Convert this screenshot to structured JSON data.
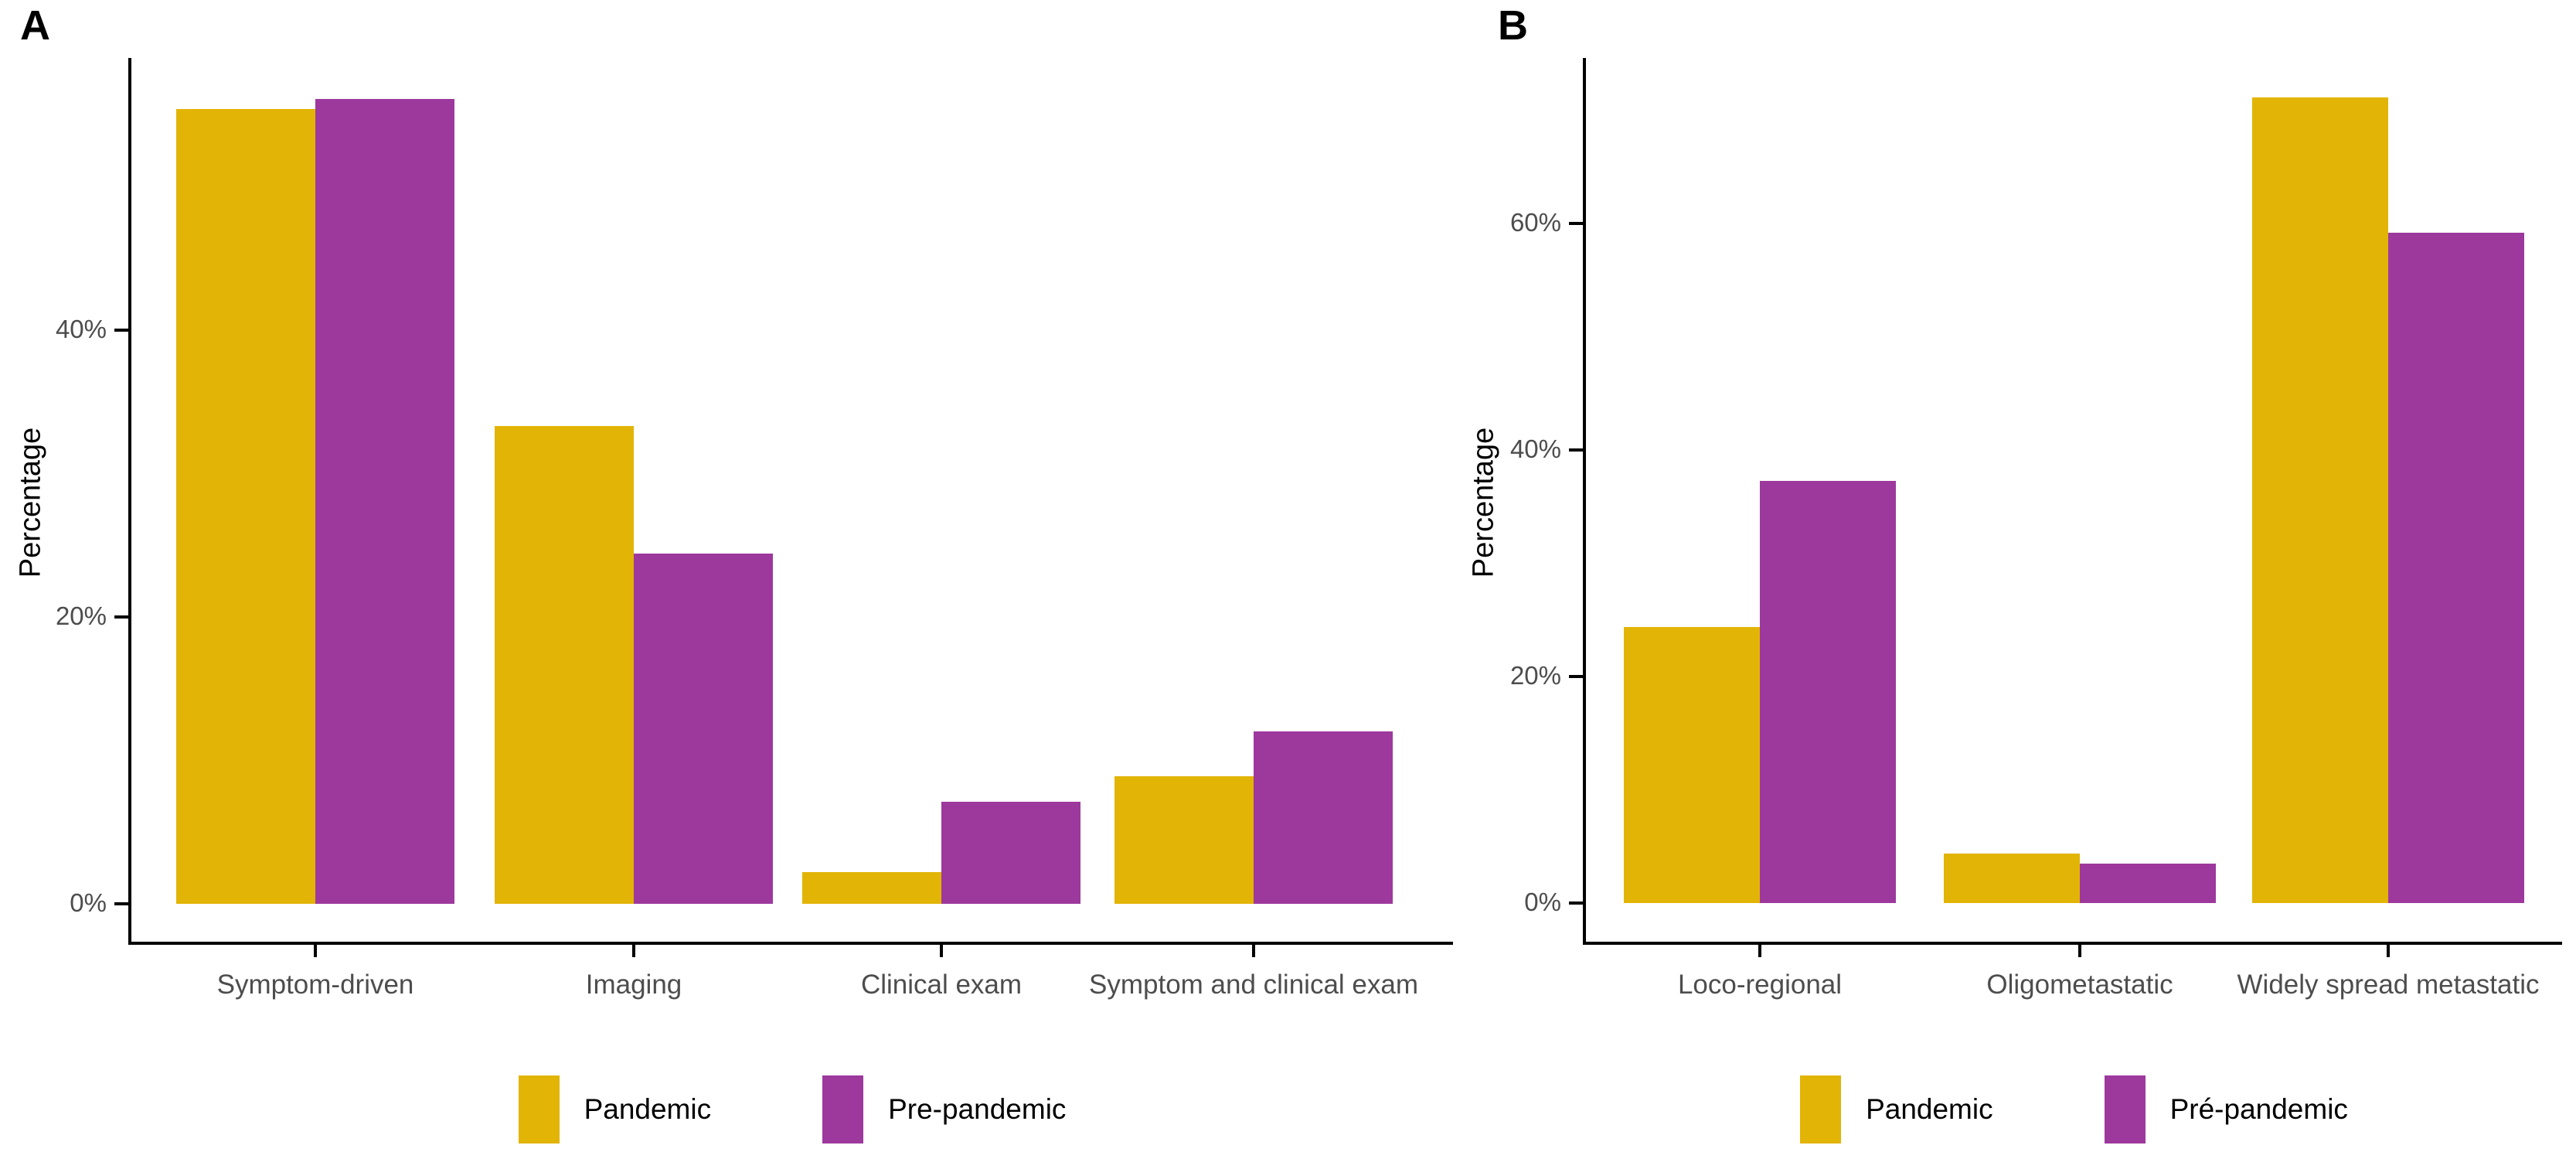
{
  "figure": {
    "background": "#ffffff"
  },
  "colors": {
    "pandemic": "#E2B405",
    "pre_pandemic": "#9D389D",
    "axis": "#000000",
    "tick_text": "#4d4d4d"
  },
  "panel_a": {
    "tag": "A",
    "ylabel": "Percentage"
  },
  "panel_b": {
    "tag": "B",
    "ylabel": "Percentage"
  },
  "chart_data": [
    {
      "type": "bar",
      "panel_tag": "A",
      "title": "",
      "xlabel": "",
      "ylabel": "Percentage",
      "categories": [
        "Symptom-driven",
        "Imaging",
        "Clinical exam",
        "Symptom and clinical exam"
      ],
      "series": [
        {
          "name": "Pandemic",
          "values": [
            55.4,
            33.3,
            2.2,
            8.9
          ]
        },
        {
          "name": "Pre-pandemic",
          "values": [
            56.1,
            24.4,
            7.1,
            12.0
          ]
        }
      ],
      "yticks": [
        {
          "value": 0,
          "label": "0%"
        },
        {
          "value": 20,
          "label": "20%"
        },
        {
          "value": 40,
          "label": "40%"
        }
      ],
      "ylim": [
        0,
        59
      ],
      "grid": false,
      "legend_position": "bottom",
      "legend": [
        "Pandemic",
        "Pre-pandemic"
      ]
    },
    {
      "type": "bar",
      "panel_tag": "B",
      "title": "",
      "xlabel": "",
      "ylabel": "Percentage",
      "categories": [
        "Loco-regional",
        "Oligometastatic",
        "Widely spread metastatic"
      ],
      "series": [
        {
          "name": "Pandemic",
          "values": [
            24.4,
            4.4,
            71.1
          ]
        },
        {
          "name": "Pré-pandemic",
          "values": [
            37.3,
            3.5,
            59.2
          ]
        }
      ],
      "yticks": [
        {
          "value": 0,
          "label": "0%"
        },
        {
          "value": 20,
          "label": "20%"
        },
        {
          "value": 40,
          "label": "40%"
        },
        {
          "value": 60,
          "label": "60%"
        }
      ],
      "ylim": [
        0,
        74.6
      ],
      "grid": false,
      "legend_position": "bottom",
      "legend": [
        "Pandemic",
        "Pré-pandemic"
      ]
    }
  ]
}
